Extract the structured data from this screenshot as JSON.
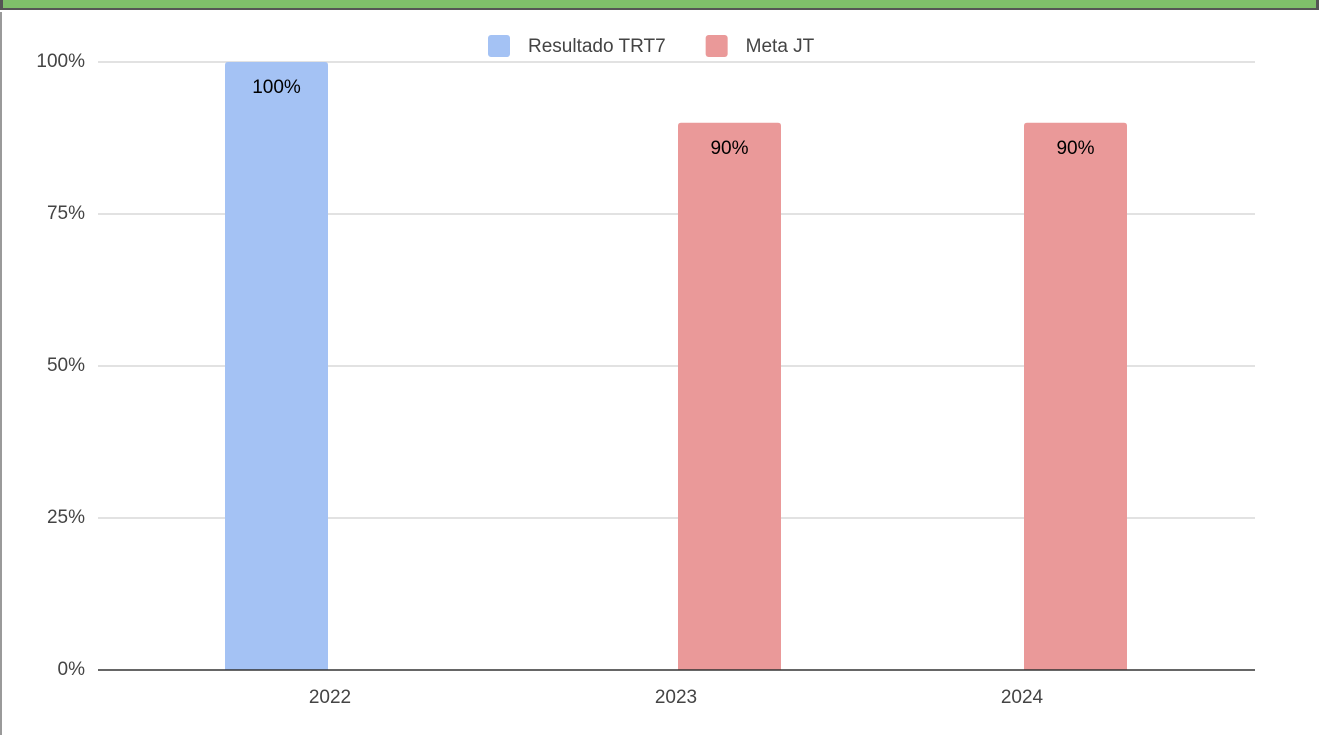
{
  "chart_data": {
    "type": "bar",
    "categories": [
      "2022",
      "2023",
      "2024"
    ],
    "series": [
      {
        "name": "Resultado TRT7",
        "color": "#a4c2f4",
        "values": [
          100,
          null,
          null
        ],
        "value_labels": [
          "100%",
          null,
          null
        ]
      },
      {
        "name": "Meta JT",
        "color": "#ea9999",
        "values": [
          null,
          90,
          90
        ],
        "value_labels": [
          null,
          "90%",
          "90%"
        ]
      }
    ],
    "ylim": [
      0,
      100
    ],
    "yticks": [
      {
        "value": 0,
        "label": "0%"
      },
      {
        "value": 25,
        "label": "25%"
      },
      {
        "value": 50,
        "label": "50%"
      },
      {
        "value": 75,
        "label": "75%"
      },
      {
        "value": 100,
        "label": "100%"
      }
    ],
    "grid": true,
    "legend": "top"
  }
}
